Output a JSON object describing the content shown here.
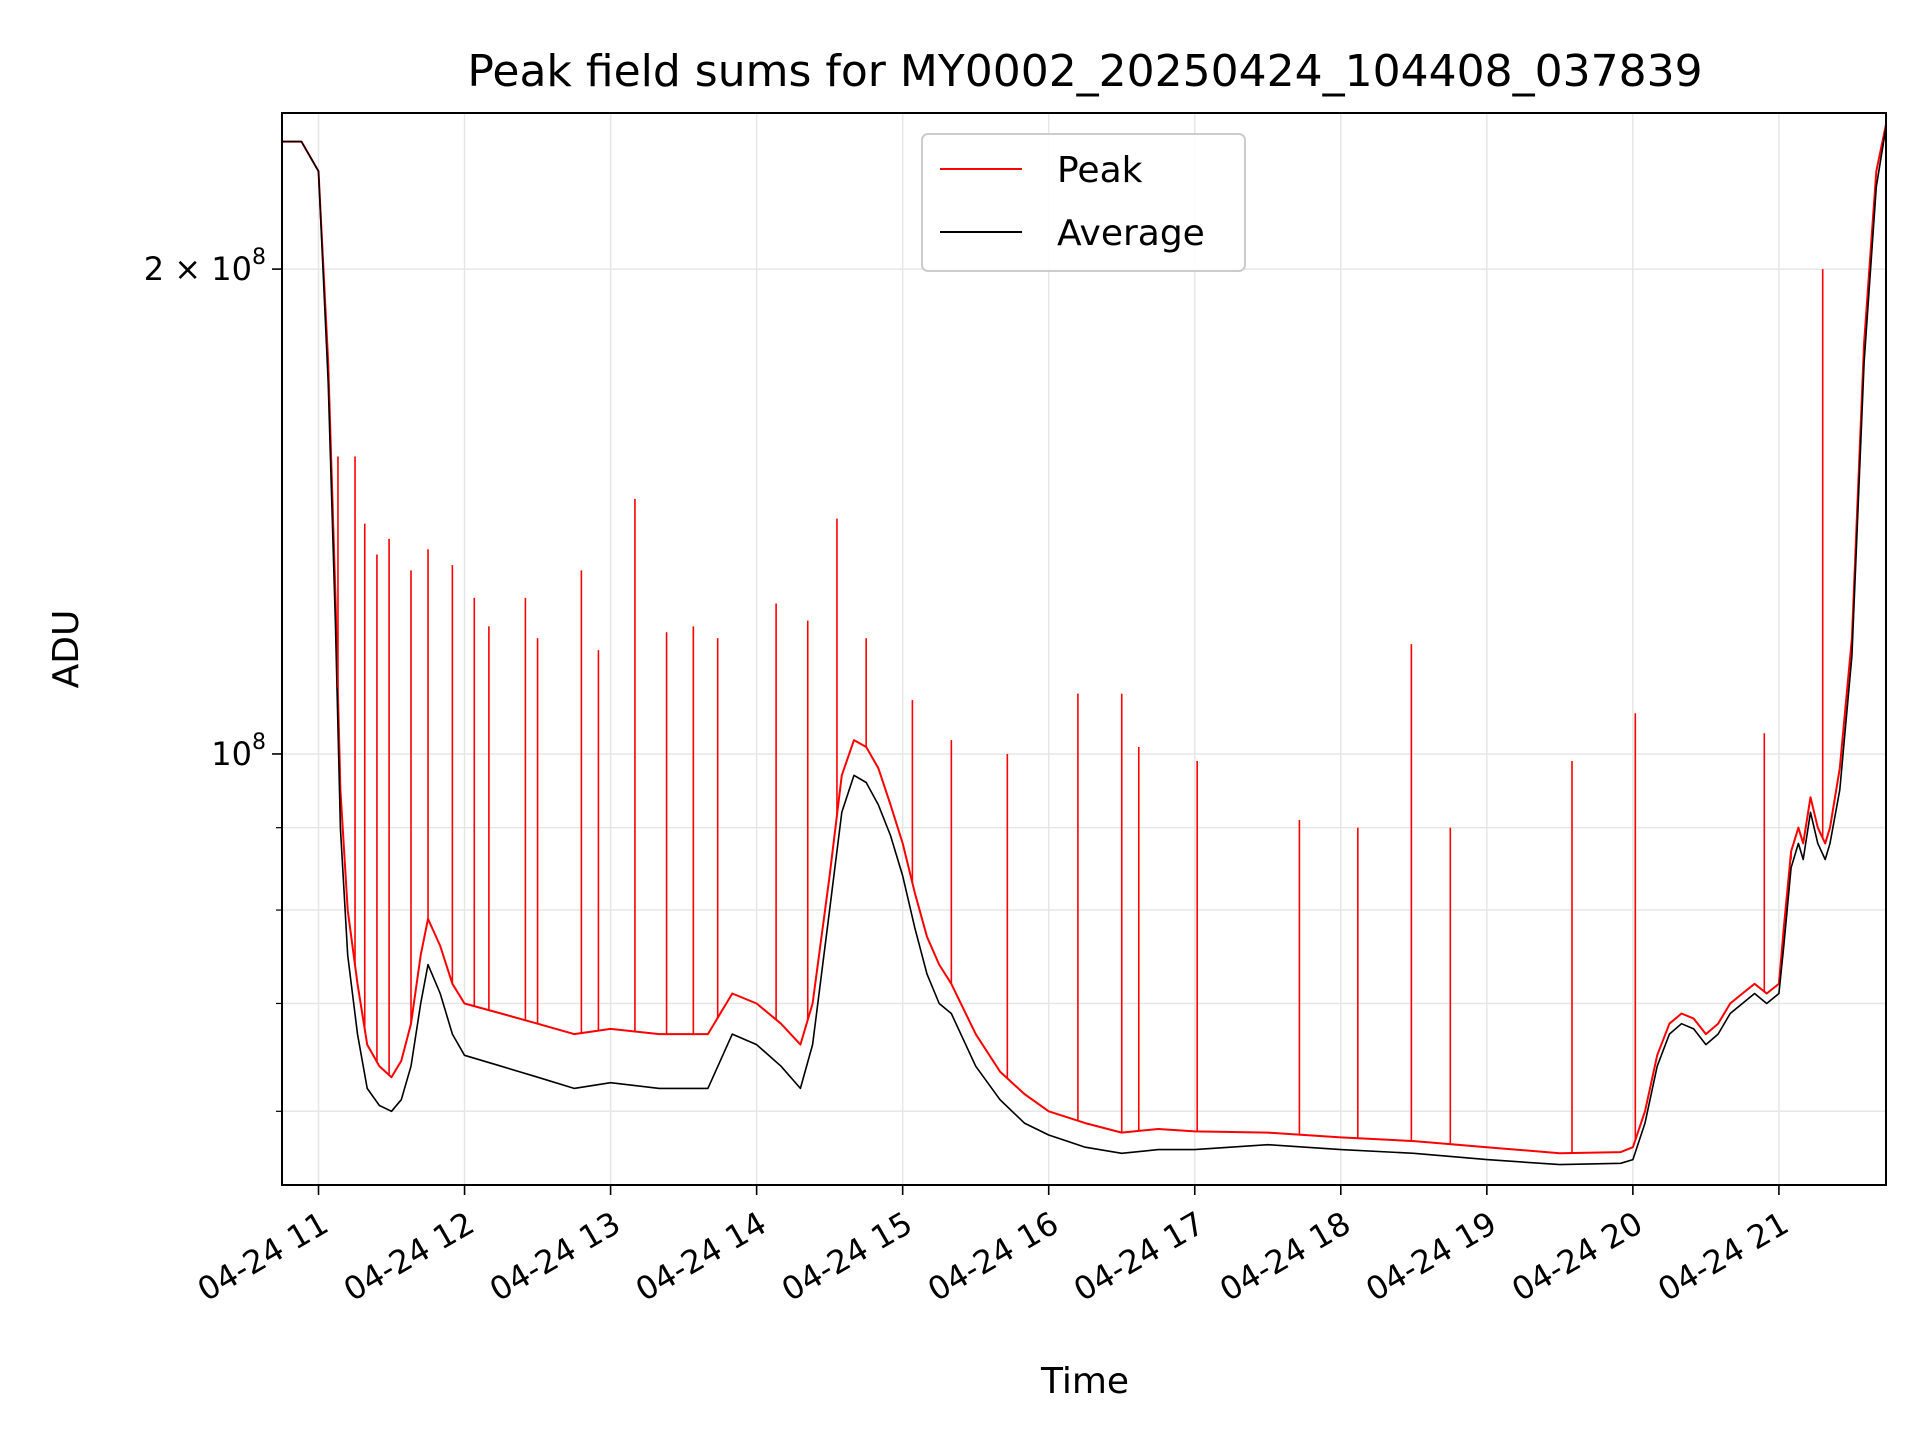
{
  "chart_data": {
    "type": "line",
    "title": "Peak field sums for MY0002_20250424_104408_037839",
    "xlabel": "Time",
    "ylabel": "ADU",
    "y_scale": "log",
    "ylim": [
      54000000,
      250000000
    ],
    "xlim": [
      "2025-04-24 10:45",
      "2025-04-24 21:44"
    ],
    "grid": true,
    "legend": {
      "placement": "top-center",
      "entries": [
        "Peak",
        "Average"
      ]
    },
    "x_ticks": [
      "04-24 11",
      "04-24 12",
      "04-24 13",
      "04-24 14",
      "04-24 15",
      "04-24 16",
      "04-24 17",
      "04-24 18",
      "04-24 19",
      "04-24 20",
      "04-24 21"
    ],
    "y_ticks": [
      {
        "value": 100000000,
        "base": "10",
        "exp": "8",
        "coef": ""
      },
      {
        "value": 200000000,
        "base": "10",
        "exp": "8",
        "coef": "2 × "
      }
    ],
    "series": [
      {
        "name": "Average",
        "color": "#000000",
        "x": [
          "2025-04-24 10:45",
          "2025-04-24 10:53",
          "2025-04-24 11:00",
          "2025-04-24 11:04",
          "2025-04-24 11:07",
          "2025-04-24 11:09",
          "2025-04-24 11:12",
          "2025-04-24 11:16",
          "2025-04-24 11:20",
          "2025-04-24 11:25",
          "2025-04-24 11:30",
          "2025-04-24 11:34",
          "2025-04-24 11:38",
          "2025-04-24 11:42",
          "2025-04-24 11:45",
          "2025-04-24 11:50",
          "2025-04-24 11:55",
          "2025-04-24 12:00",
          "2025-04-24 12:15",
          "2025-04-24 12:30",
          "2025-04-24 12:45",
          "2025-04-24 13:00",
          "2025-04-24 13:20",
          "2025-04-24 13:40",
          "2025-04-24 13:50",
          "2025-04-24 14:00",
          "2025-04-24 14:10",
          "2025-04-24 14:18",
          "2025-04-24 14:23",
          "2025-04-24 14:30",
          "2025-04-24 14:35",
          "2025-04-24 14:40",
          "2025-04-24 14:45",
          "2025-04-24 14:50",
          "2025-04-24 14:55",
          "2025-04-24 15:00",
          "2025-04-24 15:05",
          "2025-04-24 15:10",
          "2025-04-24 15:15",
          "2025-04-24 15:20",
          "2025-04-24 15:30",
          "2025-04-24 15:40",
          "2025-04-24 15:50",
          "2025-04-24 16:00",
          "2025-04-24 16:15",
          "2025-04-24 16:30",
          "2025-04-24 16:45",
          "2025-04-24 17:00",
          "2025-04-24 17:30",
          "2025-04-24 18:00",
          "2025-04-24 18:30",
          "2025-04-24 19:00",
          "2025-04-24 19:30",
          "2025-04-24 19:55",
          "2025-04-24 20:00",
          "2025-04-24 20:05",
          "2025-04-24 20:10",
          "2025-04-24 20:15",
          "2025-04-24 20:20",
          "2025-04-24 20:25",
          "2025-04-24 20:30",
          "2025-04-24 20:35",
          "2025-04-24 20:40",
          "2025-04-24 20:45",
          "2025-04-24 20:50",
          "2025-04-24 20:55",
          "2025-04-24 21:00",
          "2025-04-24 21:02",
          "2025-04-24 21:05",
          "2025-04-24 21:08",
          "2025-04-24 21:10",
          "2025-04-24 21:13",
          "2025-04-24 21:16",
          "2025-04-24 21:19",
          "2025-04-24 21:21",
          "2025-04-24 21:25",
          "2025-04-24 21:30",
          "2025-04-24 21:35",
          "2025-04-24 21:40",
          "2025-04-24 21:44"
        ],
        "y": [
          240000000,
          240000000,
          230000000,
          170000000,
          120000000,
          90000000,
          75000000,
          67000000,
          62000000,
          60500000,
          60000000,
          61000000,
          64000000,
          70000000,
          74000000,
          71000000,
          67000000,
          65000000,
          64000000,
          63000000,
          62000000,
          62500000,
          62000000,
          62000000,
          67000000,
          66000000,
          64000000,
          62000000,
          66000000,
          80000000,
          92000000,
          97000000,
          96000000,
          93000000,
          89000000,
          84000000,
          78000000,
          73000000,
          70000000,
          69000000,
          64000000,
          61000000,
          59000000,
          58000000,
          57000000,
          56500000,
          56800000,
          56800000,
          57200000,
          56800000,
          56500000,
          56000000,
          55600000,
          55700000,
          56000000,
          59000000,
          64000000,
          67000000,
          68000000,
          67500000,
          66000000,
          67000000,
          69000000,
          70000000,
          71000000,
          70000000,
          71000000,
          76000000,
          85000000,
          88000000,
          86000000,
          92000000,
          88000000,
          86000000,
          88000000,
          95000000,
          115000000,
          175000000,
          225000000,
          245000000
        ]
      },
      {
        "name": "Peak",
        "color": "#ff0000",
        "x": [
          "2025-04-24 10:45",
          "2025-04-24 10:53",
          "2025-04-24 11:00",
          "2025-04-24 11:04",
          "2025-04-24 11:07",
          "2025-04-24 11:09",
          "2025-04-24 11:12",
          "2025-04-24 11:16",
          "2025-04-24 11:20",
          "2025-04-24 11:25",
          "2025-04-24 11:30",
          "2025-04-24 11:34",
          "2025-04-24 11:38",
          "2025-04-24 11:42",
          "2025-04-24 11:45",
          "2025-04-24 11:50",
          "2025-04-24 11:55",
          "2025-04-24 12:00",
          "2025-04-24 12:15",
          "2025-04-24 12:30",
          "2025-04-24 12:45",
          "2025-04-24 13:00",
          "2025-04-24 13:20",
          "2025-04-24 13:40",
          "2025-04-24 13:50",
          "2025-04-24 14:00",
          "2025-04-24 14:10",
          "2025-04-24 14:18",
          "2025-04-24 14:23",
          "2025-04-24 14:30",
          "2025-04-24 14:35",
          "2025-04-24 14:40",
          "2025-04-24 14:45",
          "2025-04-24 14:50",
          "2025-04-24 14:55",
          "2025-04-24 15:00",
          "2025-04-24 15:05",
          "2025-04-24 15:10",
          "2025-04-24 15:15",
          "2025-04-24 15:20",
          "2025-04-24 15:30",
          "2025-04-24 15:40",
          "2025-04-24 15:50",
          "2025-04-24 16:00",
          "2025-04-24 16:15",
          "2025-04-24 16:30",
          "2025-04-24 16:45",
          "2025-04-24 17:00",
          "2025-04-24 17:30",
          "2025-04-24 18:00",
          "2025-04-24 18:30",
          "2025-04-24 19:00",
          "2025-04-24 19:30",
          "2025-04-24 19:55",
          "2025-04-24 20:00",
          "2025-04-24 20:05",
          "2025-04-24 20:10",
          "2025-04-24 20:15",
          "2025-04-24 20:20",
          "2025-04-24 20:25",
          "2025-04-24 20:30",
          "2025-04-24 20:35",
          "2025-04-24 20:40",
          "2025-04-24 20:45",
          "2025-04-24 20:50",
          "2025-04-24 20:55",
          "2025-04-24 21:00",
          "2025-04-24 21:02",
          "2025-04-24 21:05",
          "2025-04-24 21:08",
          "2025-04-24 21:10",
          "2025-04-24 21:13",
          "2025-04-24 21:16",
          "2025-04-24 21:19",
          "2025-04-24 21:21",
          "2025-04-24 21:25",
          "2025-04-24 21:30",
          "2025-04-24 21:35",
          "2025-04-24 21:40",
          "2025-04-24 21:44"
        ],
        "y": [
          240000000,
          240000000,
          230000000,
          175000000,
          125000000,
          95000000,
          80000000,
          72000000,
          66000000,
          64000000,
          63000000,
          64500000,
          68000000,
          75000000,
          79000000,
          76000000,
          72000000,
          70000000,
          69000000,
          68000000,
          67000000,
          67500000,
          67000000,
          67000000,
          71000000,
          70000000,
          68000000,
          66000000,
          70000000,
          84000000,
          97000000,
          102000000,
          101000000,
          98000000,
          93000000,
          88000000,
          82000000,
          77000000,
          74000000,
          72000000,
          67000000,
          63500000,
          61500000,
          60000000,
          59000000,
          58200000,
          58500000,
          58300000,
          58200000,
          57800000,
          57500000,
          57000000,
          56500000,
          56600000,
          57000000,
          60000000,
          65000000,
          68000000,
          69000000,
          68500000,
          67000000,
          68000000,
          70000000,
          71000000,
          72000000,
          71000000,
          72000000,
          78000000,
          87000000,
          90000000,
          88000000,
          94000000,
          90000000,
          88000000,
          90000000,
          98000000,
          118000000,
          180000000,
          230000000,
          246000000
        ]
      }
    ],
    "peak_spikes": {
      "x": [
        "2025-04-24 11:08",
        "2025-04-24 11:15",
        "2025-04-24 11:19",
        "2025-04-24 11:24",
        "2025-04-24 11:29",
        "2025-04-24 11:38",
        "2025-04-24 11:45",
        "2025-04-24 11:55",
        "2025-04-24 12:04",
        "2025-04-24 12:10",
        "2025-04-24 12:25",
        "2025-04-24 12:30",
        "2025-04-24 12:48",
        "2025-04-24 12:55",
        "2025-04-24 13:10",
        "2025-04-24 13:23",
        "2025-04-24 13:34",
        "2025-04-24 13:44",
        "2025-04-24 14:08",
        "2025-04-24 14:21",
        "2025-04-24 14:33",
        "2025-04-24 14:45",
        "2025-04-24 15:04",
        "2025-04-24 15:20",
        "2025-04-24 15:43",
        "2025-04-24 16:12",
        "2025-04-24 16:30",
        "2025-04-24 16:37",
        "2025-04-24 17:01",
        "2025-04-24 17:43",
        "2025-04-24 18:07",
        "2025-04-24 18:29",
        "2025-04-24 18:45",
        "2025-04-24 19:35",
        "2025-04-24 20:01",
        "2025-04-24 20:54",
        "2025-04-24 21:05",
        "2025-04-24 21:18"
      ],
      "y": [
        153000000,
        153000000,
        139000000,
        133000000,
        136000000,
        130000000,
        134000000,
        131000000,
        125000000,
        120000000,
        125000000,
        118000000,
        130000000,
        116000000,
        144000000,
        119000000,
        120000000,
        118000000,
        124000000,
        121000000,
        140000000,
        118000000,
        108000000,
        102000000,
        100000000,
        109000000,
        109000000,
        101000000,
        99000000,
        91000000,
        90000000,
        117000000,
        90000000,
        99000000,
        106000000,
        103000000,
        86000000,
        200000000
      ]
    }
  }
}
